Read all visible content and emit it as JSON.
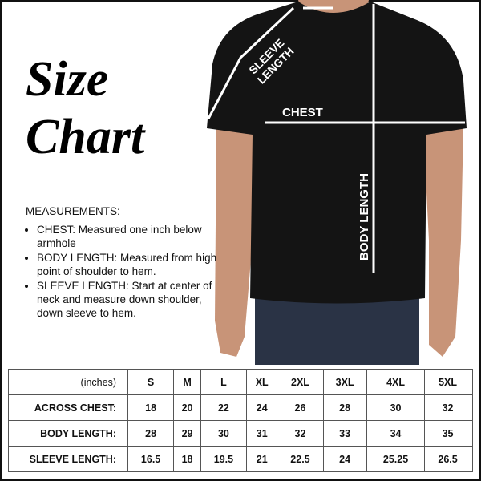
{
  "title": {
    "line1": "Size",
    "line2": "Chart"
  },
  "diagram_labels": {
    "sleeve_length": "SLEEVE LENGTH",
    "chest": "CHEST",
    "body_length": "BODY LENGTH"
  },
  "measurements": {
    "heading": "MEASUREMENTS:",
    "items": [
      "CHEST:  Measured one inch below armhole",
      "BODY LENGTH:  Measured from high point of shoulder to hem.",
      "SLEEVE LENGTH:  Start at center of neck and measure down shoulder, down sleeve to hem."
    ]
  },
  "table": {
    "unit": "(inches)",
    "sizes": [
      "S",
      "M",
      "L",
      "XL",
      "2XL",
      "3XL",
      "4XL",
      "5XL",
      ""
    ],
    "rows": [
      {
        "label": "ACROSS CHEST:",
        "values": [
          "18",
          "20",
          "22",
          "24",
          "26",
          "28",
          "30",
          "32",
          ""
        ]
      },
      {
        "label": "BODY LENGTH:",
        "values": [
          "28",
          "29",
          "30",
          "31",
          "32",
          "33",
          "34",
          "35",
          ""
        ]
      },
      {
        "label": "SLEEVE LENGTH:",
        "values": [
          "16.5",
          "18",
          "19.5",
          "21",
          "22.5",
          "24",
          "25.25",
          "26.5",
          ""
        ]
      }
    ]
  },
  "colors": {
    "shirt": "#141414",
    "skin": "#c89478",
    "jeans": "#2a3345",
    "lines": "#ffffff"
  }
}
